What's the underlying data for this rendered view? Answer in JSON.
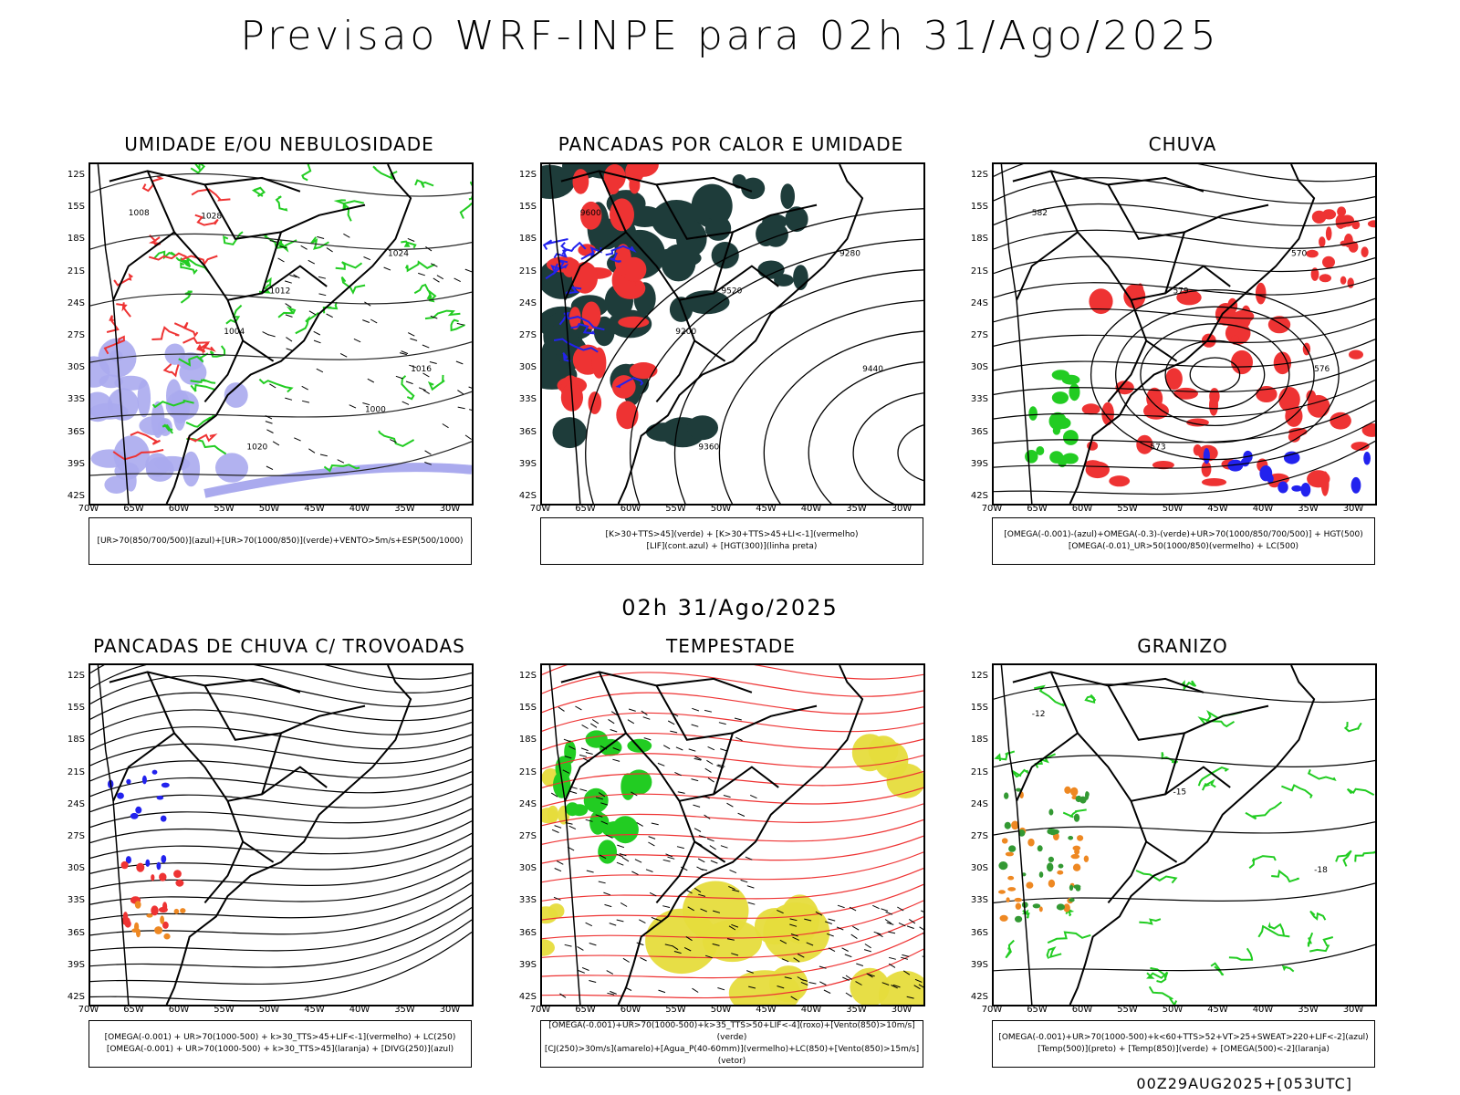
{
  "title": "Previsao WRF-INPE  para 02h 31/Ago/2025",
  "subtitle": "02h 31/Ago/2025",
  "footer": "00Z29AUG2025+[053UTC]",
  "lat_ticks": [
    "12S",
    "15S",
    "18S",
    "21S",
    "24S",
    "27S",
    "30S",
    "33S",
    "36S",
    "39S",
    "42S"
  ],
  "lon_ticks": [
    "70W",
    "65W",
    "60W",
    "55W",
    "50W",
    "45W",
    "40W",
    "35W",
    "30W"
  ],
  "colors": {
    "green": "#22cc22",
    "red": "#ee3333",
    "blue": "#2222ee",
    "lavender": "#aaaaee",
    "darkteal": "#1e3c3a",
    "yellow": "#e6dc3c",
    "orange": "#ee8822"
  },
  "panels": [
    {
      "title": "UMIDADE E/OU NEBULOSIDADE",
      "legend": [
        "[UR>70(850/700/500)](azul)+[UR>70(1000/850)](verde)+VENTO>5m/s+ESP(500/1000)"
      ],
      "labels": [
        "1008",
        "1012",
        "1016",
        "1020",
        "1024",
        "1004",
        "1000",
        "1028"
      ]
    },
    {
      "title": "PANCADAS POR CALOR E UMIDADE",
      "legend": [
        "[K>30+TTS>45](verde) + [K>30+TTS>45+LI<-1](vermelho)",
        "[LIF](cont.azul) + [HGT(300)](linha preta)"
      ],
      "labels": [
        "9600",
        "9520",
        "9440",
        "9360",
        "9280",
        "9200"
      ]
    },
    {
      "title": "CHUVA",
      "legend": [
        "[OMEGA(-0.001)-(azul)+OMEGA(-0.3)-(verde)+UR>70(1000/850/700/500)] + HGT(500)",
        "[OMEGA(-0.01)_UR>50(1000/850)(vermelho) + LC(500)"
      ],
      "labels": [
        "582",
        "579",
        "576",
        "573",
        "570"
      ]
    },
    {
      "title": "PANCADAS DE CHUVA C/ TROVOADAS",
      "legend": [
        "[OMEGA(-0.001) + UR>70(1000-500) + k>30_TTS>45+LIF<-1](vermelho) + LC(250)",
        "[OMEGA(-0.001) + UR>70(1000-500) + k>30_TTS>45](laranja) + [DIVG(250)](azul)"
      ],
      "labels": []
    },
    {
      "title": "TEMPESTADE",
      "legend": [
        "[OMEGA(-0.001)+UR>70(1000-500)+k>35_TTS>50+LIF<-4](roxo)+[Vento(850)>10m/s](verde)",
        "[CJ(250)>30m/s](amarelo)+[Agua_P(40-60mm)](vermelho)+LC(850)+[Vento(850)>15m/s](vetor)"
      ],
      "labels": []
    },
    {
      "title": "GRANIZO",
      "legend": [
        "[OMEGA(-0.001)+UR>70(1000-500)+k<60+TTS>52+VT>25+SWEAT>220+LIF<-2](azul)",
        "[Temp(500)](preto) + [Temp(850)](verde) + [OMEGA(500)<-2](laranja)"
      ],
      "labels": [
        "-12",
        "-15",
        "-18"
      ]
    }
  ]
}
